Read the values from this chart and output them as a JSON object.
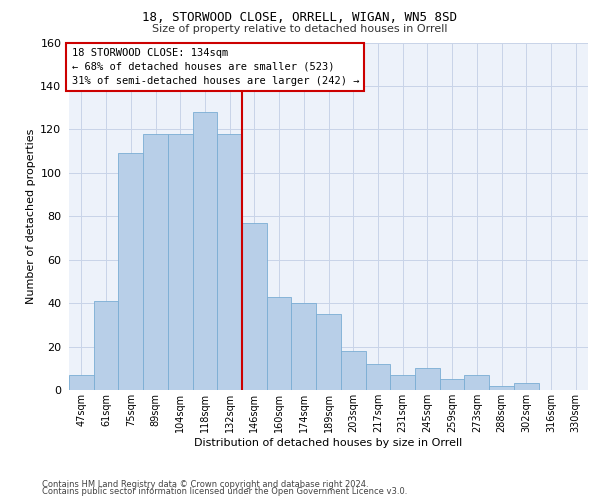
{
  "title1": "18, STORWOOD CLOSE, ORRELL, WIGAN, WN5 8SD",
  "title2": "Size of property relative to detached houses in Orrell",
  "xlabel": "Distribution of detached houses by size in Orrell",
  "ylabel": "Number of detached properties",
  "bar_categories": [
    "47sqm",
    "61sqm",
    "75sqm",
    "89sqm",
    "104sqm",
    "118sqm",
    "132sqm",
    "146sqm",
    "160sqm",
    "174sqm",
    "189sqm",
    "203sqm",
    "217sqm",
    "231sqm",
    "245sqm",
    "259sqm",
    "273sqm",
    "288sqm",
    "302sqm",
    "316sqm",
    "330sqm"
  ],
  "bar_heights": [
    7,
    41,
    109,
    118,
    118,
    128,
    118,
    77,
    43,
    40,
    35,
    18,
    12,
    7,
    10,
    5,
    7,
    2,
    3,
    0,
    0
  ],
  "bar_color": "#b8cfe8",
  "bar_edge_color": "#7aadd4",
  "vline_color": "#cc0000",
  "vline_pos": 6.5,
  "annotation_line1": "18 STORWOOD CLOSE: 134sqm",
  "annotation_line2": "← 68% of detached houses are smaller (523)",
  "annotation_line3": "31% of semi-detached houses are larger (242) →",
  "ylim": [
    0,
    160
  ],
  "yticks": [
    0,
    20,
    40,
    60,
    80,
    100,
    120,
    140,
    160
  ],
  "grid_color": "#c8d4e8",
  "background_color": "#edf2fa",
  "footer1": "Contains HM Land Registry data © Crown copyright and database right 2024.",
  "footer2": "Contains public sector information licensed under the Open Government Licence v3.0."
}
